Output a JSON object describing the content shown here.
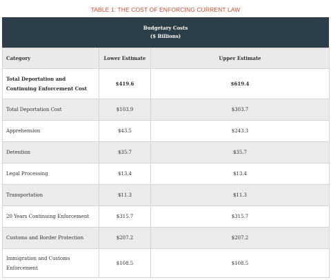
{
  "title": "TABLE 1: THE COST OF ENFORCING CURRENT LAW",
  "banner": {
    "line1": "Budgetary Costs",
    "line2": "($ Billions)"
  },
  "columns": [
    "Category",
    "Lower Estimate",
    "Upper Estimate"
  ],
  "rows": [
    {
      "category": "Total Deportation and Continuing Enforcement Cost",
      "lower": "$419.6",
      "upper": "$619.4"
    },
    {
      "category": "Total Deportation Cost",
      "lower": "$103.9",
      "upper": "$303.7"
    },
    {
      "category": "Apprehension",
      "lower": "$43.5",
      "upper": "$243.3"
    },
    {
      "category": "Detention",
      "lower": "$35.7",
      "upper": "$35.7"
    },
    {
      "category": "Legal Processing",
      "lower": "$13.4",
      "upper": "$13.4"
    },
    {
      "category": "Transportation",
      "lower": "$11.3",
      "upper": "$11.3"
    },
    {
      "category": "20 Years Continuing Enforcement",
      "lower": "$315.7",
      "upper": "$315.7"
    },
    {
      "category": "Customs and Border Protection",
      "lower": "$207.2",
      "upper": "$207.2"
    },
    {
      "category": "Immigration and Customs Enforcement",
      "lower": "$108.5",
      "upper": "$108.5"
    }
  ],
  "colors": {
    "title": "#d24a2a",
    "banner": "#2c3e48",
    "shade": "#ebebeb"
  }
}
